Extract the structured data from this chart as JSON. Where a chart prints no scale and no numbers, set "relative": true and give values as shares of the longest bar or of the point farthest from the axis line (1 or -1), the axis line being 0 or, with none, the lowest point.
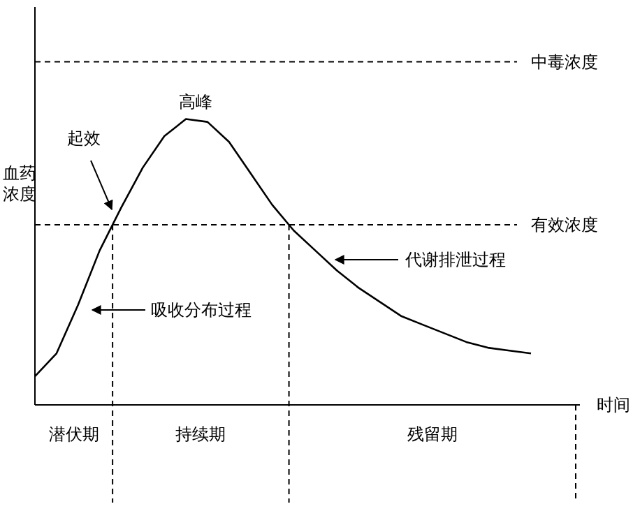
{
  "chart_data": {
    "type": "line",
    "relative": true,
    "xlabel": "时间",
    "ylabel": "血药浓度",
    "line_style": "solid",
    "categories": [
      null,
      null,
      null,
      null,
      null,
      null,
      null,
      null,
      null,
      null,
      null,
      null,
      null,
      null,
      null,
      null,
      null,
      null,
      null,
      null,
      null,
      null,
      null,
      null
    ],
    "series": [
      {
        "color": "#000000",
        "values": [
          0.1,
          0.18,
          0.35,
          0.54,
          0.69,
          0.83,
          0.94,
          1,
          0.99,
          0.92,
          0.81,
          0.7,
          0.61,
          0.54,
          0.47,
          0.41,
          0.36,
          0.31,
          0.28,
          0.25,
          0.22,
          0.2,
          0.19,
          0.18
        ]
      }
    ],
    "ref_lines": [
      {
        "axis": "y",
        "value": 1.2,
        "label": "中毒浓度",
        "line_style": "dashed"
      },
      {
        "axis": "y",
        "value": 0.63,
        "label": "有效浓度",
        "line_style": "dashed"
      }
    ],
    "annotations": [
      "起效",
      "高峰",
      "吸收分布过程",
      "代谢排泄过程",
      "潜伏期",
      "持续期",
      "残留期"
    ]
  }
}
